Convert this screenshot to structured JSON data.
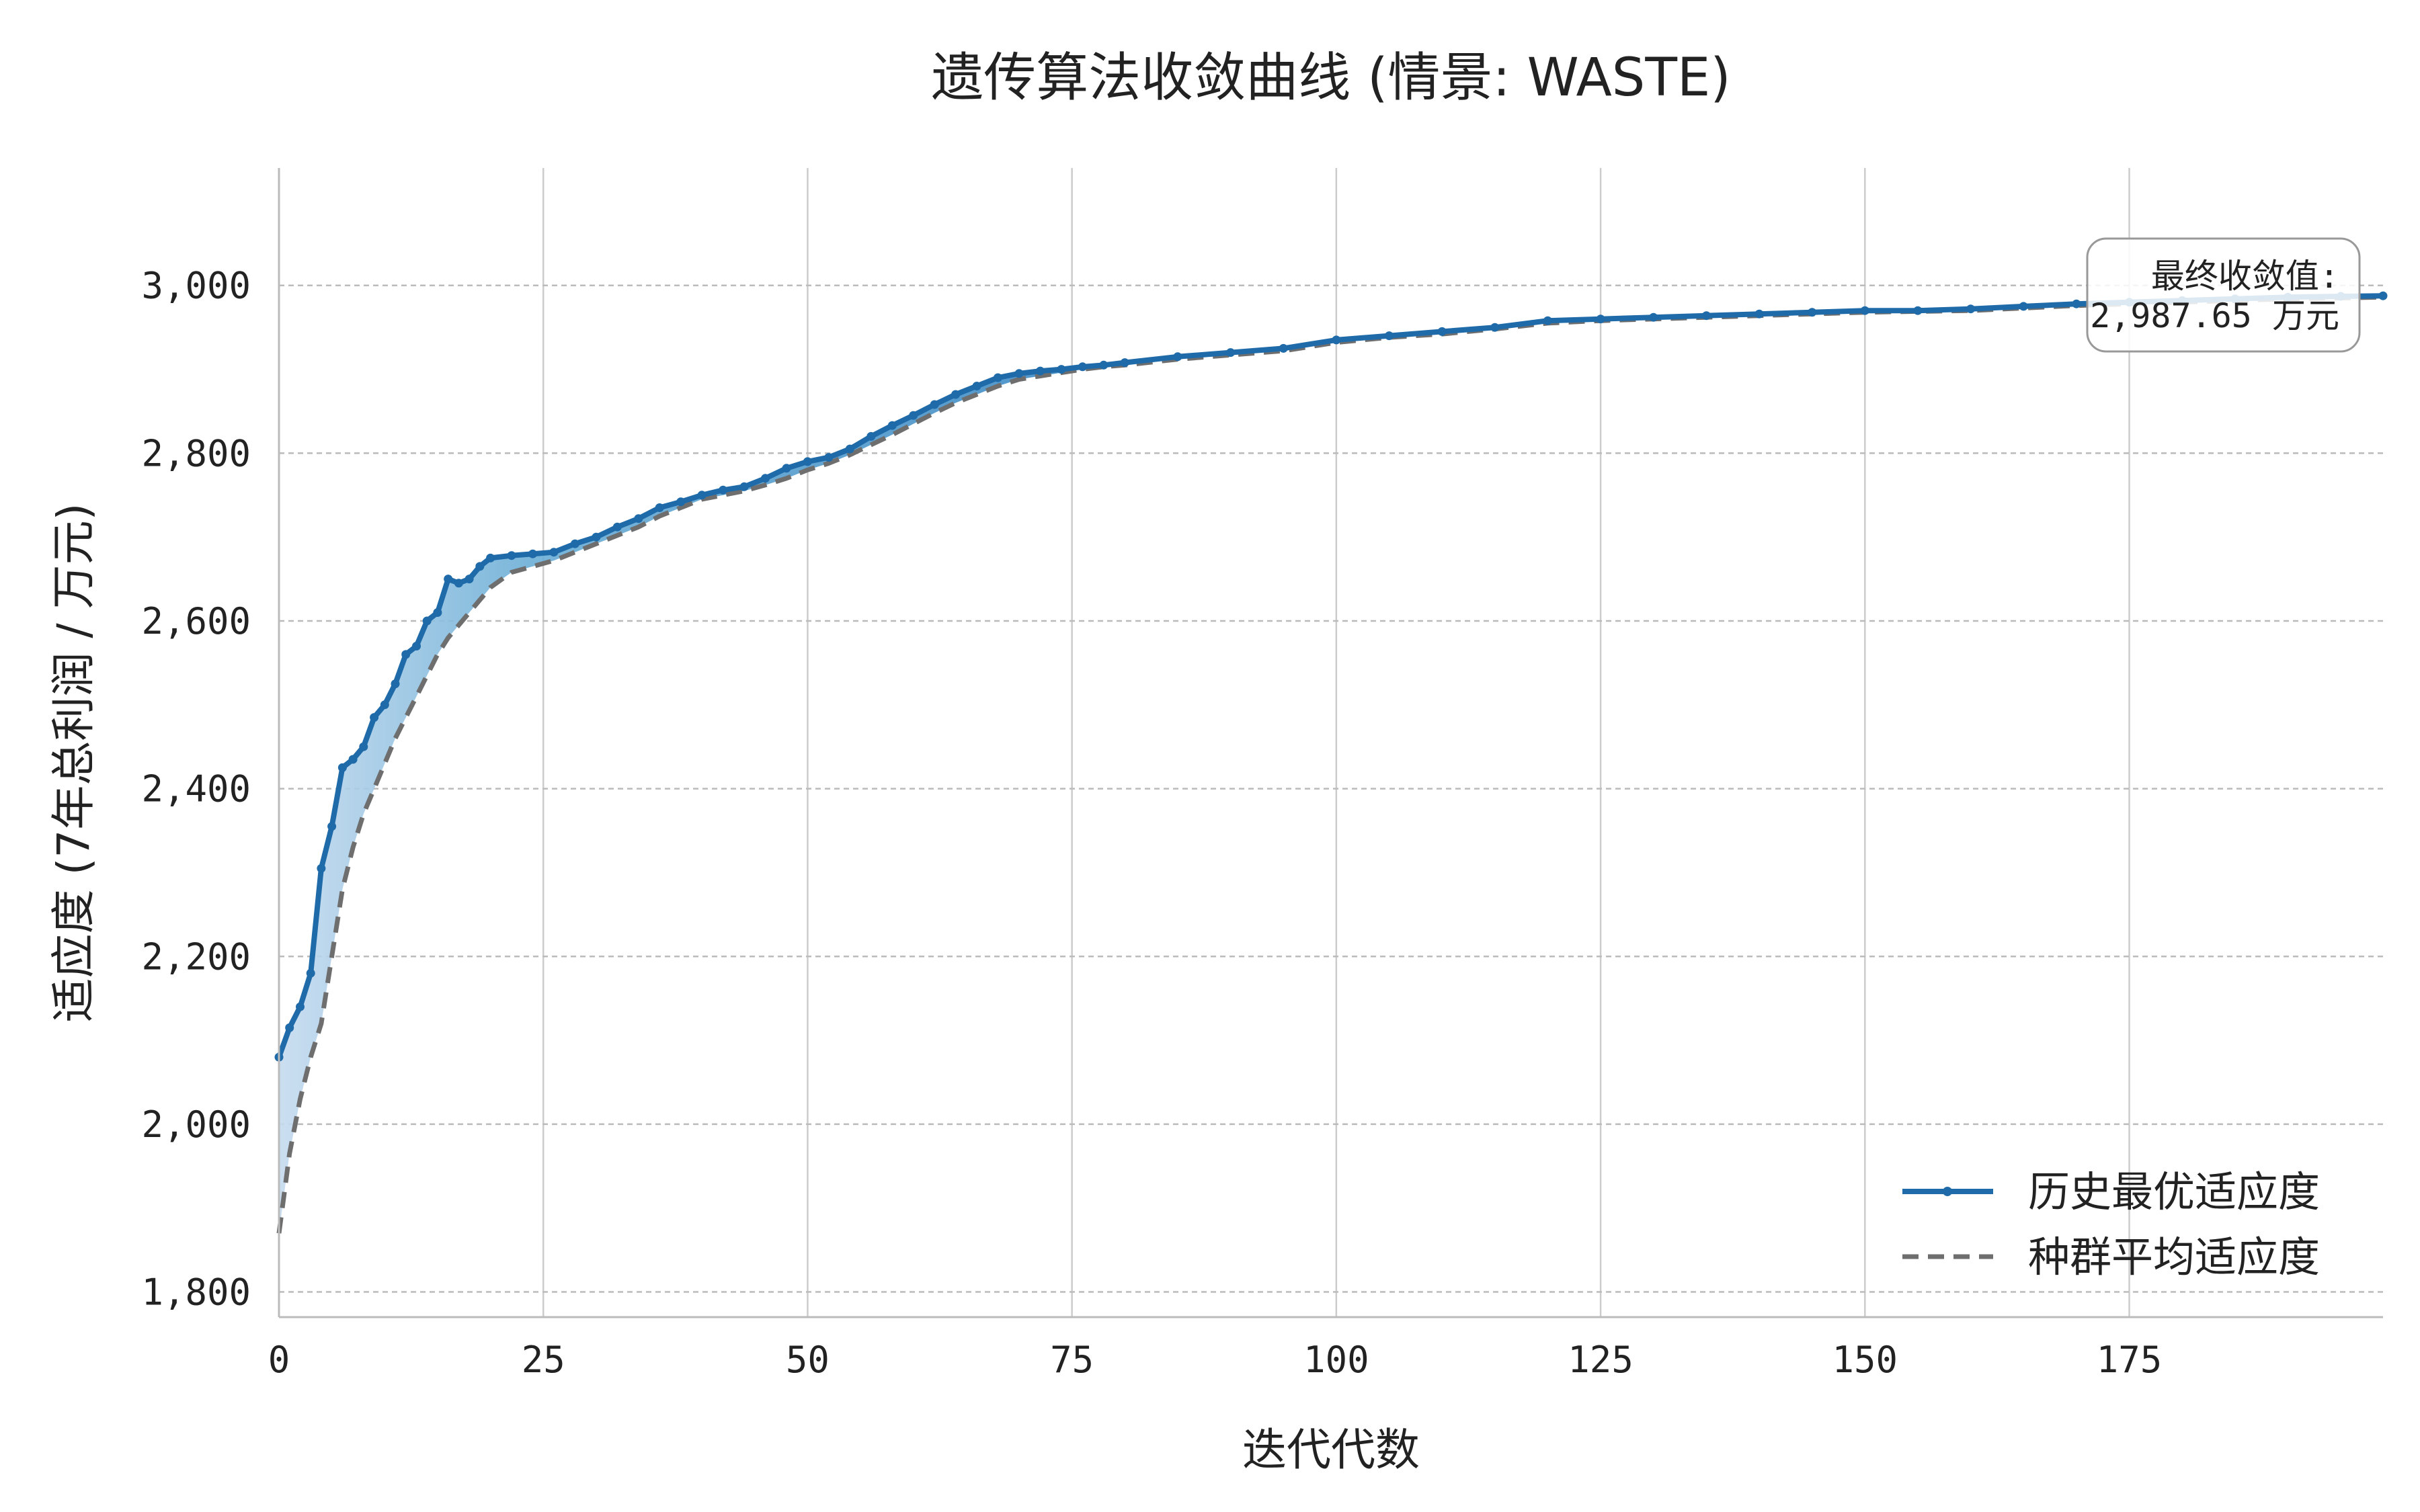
{
  "chart_data": {
    "type": "line",
    "title": "遗传算法收敛曲线 (情景: WASTE)",
    "xlabel": "迭代代数",
    "ylabel": "适应度 (7年总利润 / 万元)",
    "xlim": [
      0,
      199
    ],
    "ylim": [
      1770,
      3140
    ],
    "xticks": [
      0,
      25,
      50,
      75,
      100,
      125,
      150,
      175
    ],
    "yticks": [
      1800,
      2000,
      2200,
      2400,
      2600,
      2800,
      3000
    ],
    "xtick_labels": [
      "0",
      "25",
      "50",
      "75",
      "100",
      "125",
      "150",
      "175"
    ],
    "ytick_labels": [
      "1,800",
      "2,000",
      "2,200",
      "2,400",
      "2,600",
      "2,800",
      "3,000"
    ],
    "grid": true,
    "legend_position": "bottom-right",
    "series": [
      {
        "name": "历史最优适应度",
        "color": "#1f6aa8",
        "style": "solid-with-markers",
        "x": [
          0,
          1,
          2,
          3,
          4,
          5,
          6,
          7,
          8,
          9,
          10,
          11,
          12,
          13,
          14,
          15,
          16,
          17,
          18,
          19,
          20,
          22,
          24,
          26,
          28,
          30,
          32,
          34,
          36,
          38,
          40,
          42,
          44,
          46,
          48,
          50,
          52,
          54,
          56,
          58,
          60,
          62,
          64,
          66,
          68,
          70,
          72,
          74,
          76,
          78,
          80,
          85,
          90,
          95,
          100,
          105,
          110,
          115,
          120,
          125,
          130,
          135,
          140,
          145,
          150,
          155,
          160,
          165,
          170,
          175,
          180,
          185,
          190,
          195,
          199
        ],
        "values": [
          2080,
          2115,
          2140,
          2180,
          2305,
          2355,
          2425,
          2435,
          2450,
          2485,
          2500,
          2525,
          2560,
          2570,
          2600,
          2610,
          2650,
          2645,
          2650,
          2665,
          2675,
          2678,
          2680,
          2682,
          2692,
          2700,
          2712,
          2722,
          2735,
          2742,
          2750,
          2756,
          2760,
          2770,
          2782,
          2790,
          2795,
          2805,
          2820,
          2833,
          2845,
          2858,
          2870,
          2880,
          2890,
          2895,
          2898,
          2900,
          2903,
          2905,
          2908,
          2915,
          2920,
          2925,
          2935,
          2940,
          2945,
          2950,
          2958,
          2960,
          2962,
          2964,
          2966,
          2968,
          2970,
          2970,
          2972,
          2975,
          2978,
          2980,
          2982,
          2984,
          2986,
          2987,
          2987.65
        ]
      },
      {
        "name": "种群平均适应度",
        "color": "#6e6e6e",
        "style": "dashed",
        "x": [
          0,
          1,
          2,
          3,
          4,
          5,
          6,
          7,
          8,
          9,
          10,
          11,
          12,
          13,
          14,
          15,
          16,
          17,
          18,
          19,
          20,
          22,
          24,
          26,
          28,
          30,
          32,
          34,
          36,
          38,
          40,
          42,
          44,
          46,
          48,
          50,
          52,
          54,
          56,
          58,
          60,
          62,
          64,
          66,
          68,
          70,
          72,
          74,
          76,
          78,
          80,
          85,
          90,
          95,
          100,
          105,
          110,
          115,
          120,
          125,
          130,
          135,
          140,
          145,
          150,
          155,
          160,
          165,
          170,
          175,
          180,
          185,
          190,
          195,
          199
        ],
        "values": [
          1870,
          1965,
          2030,
          2080,
          2120,
          2200,
          2280,
          2330,
          2370,
          2400,
          2430,
          2460,
          2485,
          2510,
          2535,
          2560,
          2580,
          2595,
          2610,
          2625,
          2640,
          2658,
          2665,
          2672,
          2682,
          2692,
          2702,
          2712,
          2725,
          2735,
          2745,
          2750,
          2755,
          2762,
          2770,
          2780,
          2788,
          2798,
          2810,
          2822,
          2835,
          2848,
          2860,
          2870,
          2880,
          2888,
          2892,
          2896,
          2900,
          2903,
          2905,
          2912,
          2917,
          2922,
          2932,
          2938,
          2942,
          2948,
          2955,
          2958,
          2960,
          2962,
          2964,
          2966,
          2968,
          2969,
          2970,
          2973,
          2976,
          2978,
          2980,
          2982,
          2984,
          2985,
          2986
        ]
      }
    ],
    "annotation": {
      "line1": "最终收敛值:",
      "line2": "2,987.65 万元"
    }
  }
}
